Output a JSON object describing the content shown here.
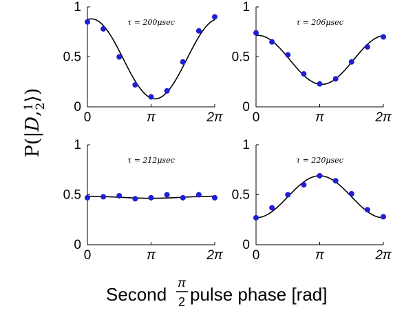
{
  "chart_data": [
    {
      "type": "scatter",
      "title": "τ = 200μsec",
      "x_tick_labels": [
        "0",
        "π",
        "2π"
      ],
      "y_tick_labels": [
        "0",
        "0.5",
        "1"
      ],
      "xlim": [
        0,
        6.2832
      ],
      "ylim": [
        0,
        1
      ],
      "x": [
        0,
        0.7854,
        1.5708,
        2.3562,
        3.1416,
        3.927,
        4.7124,
        5.4978,
        6.2832
      ],
      "points": [
        0.85,
        0.78,
        0.5,
        0.22,
        0.1,
        0.16,
        0.45,
        0.76,
        0.9
      ],
      "fit": {
        "amplitude": 0.4,
        "offset": 0.48,
        "phase": 0.2
      },
      "point_color": "#1f1fd6",
      "fit_color": "#000000"
    },
    {
      "type": "scatter",
      "title": "τ = 206μsec",
      "x_tick_labels": [
        "0",
        "π",
        "2π"
      ],
      "y_tick_labels": [
        "0",
        "0.5",
        "1"
      ],
      "xlim": [
        0,
        6.2832
      ],
      "ylim": [
        0,
        1
      ],
      "x": [
        0,
        0.7854,
        1.5708,
        2.3562,
        3.1416,
        3.927,
        4.7124,
        5.4978,
        6.2832
      ],
      "points": [
        0.74,
        0.65,
        0.52,
        0.33,
        0.23,
        0.28,
        0.45,
        0.6,
        0.7
      ],
      "fit": {
        "amplitude": 0.245,
        "offset": 0.47,
        "phase": 0.1
      },
      "point_color": "#1f1fd6",
      "fit_color": "#000000"
    },
    {
      "type": "scatter",
      "title": "τ = 212μsec",
      "x_tick_labels": [
        "0",
        "π",
        "2π"
      ],
      "y_tick_labels": [
        "0",
        "0.5",
        "1"
      ],
      "xlim": [
        0,
        6.2832
      ],
      "ylim": [
        0,
        1
      ],
      "x": [
        0,
        0.7854,
        1.5708,
        2.3562,
        3.1416,
        3.927,
        4.7124,
        5.4978,
        6.2832
      ],
      "points": [
        0.47,
        0.48,
        0.49,
        0.46,
        0.47,
        0.5,
        0.47,
        0.5,
        0.47
      ],
      "fit": {
        "amplitude": 0.01,
        "offset": 0.475,
        "phase": 0
      },
      "point_color": "#1f1fd6",
      "fit_color": "#000000"
    },
    {
      "type": "scatter",
      "title": "τ = 220μsec",
      "x_tick_labels": [
        "0",
        "π",
        "2π"
      ],
      "y_tick_labels": [
        "0",
        "0.5",
        "1"
      ],
      "xlim": [
        0,
        6.2832
      ],
      "ylim": [
        0,
        1
      ],
      "x": [
        0,
        0.7854,
        1.5708,
        2.3562,
        3.1416,
        3.927,
        4.7124,
        5.4978,
        6.2832
      ],
      "points": [
        0.27,
        0.37,
        0.5,
        0.6,
        0.69,
        0.64,
        0.51,
        0.35,
        0.28
      ],
      "fit": {
        "amplitude": -0.21,
        "offset": 0.48,
        "phase": 0
      },
      "point_color": "#1f1fd6",
      "fit_color": "#000000"
    }
  ],
  "ylabel": {
    "prefix": "P(|",
    "symbol": "D",
    "sep": ",",
    "frac_num": "1",
    "frac_den": "2",
    "suffix": "⟩)"
  },
  "xlabel": {
    "prefix": "Second ",
    "frac_num": "π",
    "frac_den": "2",
    "suffix": " pulse phase [rad]"
  }
}
